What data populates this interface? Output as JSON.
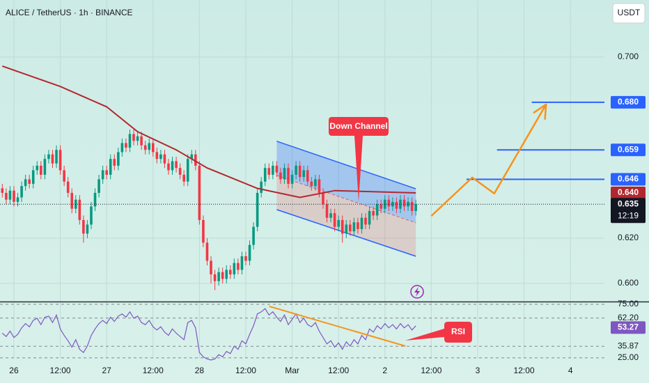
{
  "chart_data": {
    "type": "candlestick",
    "title": "ALICE / TetherUS · 1h · BINANCE",
    "currency": "USDT",
    "up_color": "#089981",
    "down_color": "#f23645",
    "x": [
      -3,
      -2,
      -1,
      0,
      1,
      2,
      3,
      4,
      5,
      6,
      7,
      8,
      9,
      10,
      11,
      12,
      13,
      14,
      15,
      16,
      17,
      18,
      19,
      20,
      21,
      22,
      23,
      24,
      25,
      26,
      27,
      28,
      29,
      30,
      31,
      32,
      33,
      34,
      35,
      36,
      37,
      38,
      39,
      40,
      41,
      42,
      43,
      44,
      45,
      46,
      47,
      48,
      49,
      50,
      51,
      52,
      53,
      54,
      55,
      56,
      57,
      58,
      59,
      60,
      61,
      62,
      63,
      64,
      65,
      66,
      67,
      68,
      69,
      70,
      71,
      72,
      73,
      74,
      75,
      76,
      77,
      78,
      79,
      80,
      81,
      82,
      83,
      84,
      85,
      86,
      87,
      88,
      89,
      90,
      91,
      92,
      93,
      94,
      95,
      96,
      97,
      98,
      99,
      100,
      101,
      102,
      103,
      104
    ],
    "open": [
      0.642,
      0.64,
      0.637,
      0.641,
      0.636,
      0.638,
      0.643,
      0.646,
      0.644,
      0.65,
      0.652,
      0.648,
      0.655,
      0.657,
      0.653,
      0.659,
      0.65,
      0.645,
      0.64,
      0.633,
      0.637,
      0.628,
      0.622,
      0.626,
      0.634,
      0.64,
      0.646,
      0.65,
      0.648,
      0.655,
      0.652,
      0.658,
      0.662,
      0.66,
      0.666,
      0.663,
      0.665,
      0.661,
      0.659,
      0.662,
      0.658,
      0.655,
      0.657,
      0.653,
      0.65,
      0.654,
      0.651,
      0.648,
      0.645,
      0.655,
      0.657,
      0.652,
      0.628,
      0.618,
      0.61,
      0.604,
      0.601,
      0.605,
      0.602,
      0.606,
      0.604,
      0.609,
      0.606,
      0.612,
      0.61,
      0.617,
      0.625,
      0.64,
      0.645,
      0.651,
      0.648,
      0.652,
      0.649,
      0.646,
      0.651,
      0.644,
      0.648,
      0.652,
      0.647,
      0.65,
      0.645,
      0.643,
      0.646,
      0.64,
      0.635,
      0.629,
      0.631,
      0.625,
      0.628,
      0.622,
      0.626,
      0.623,
      0.627,
      0.624,
      0.629,
      0.626,
      0.632,
      0.63,
      0.635,
      0.633,
      0.637,
      0.634,
      0.636,
      0.633,
      0.637,
      0.634,
      0.636,
      0.632
    ],
    "high": [
      0.644,
      0.642,
      0.643,
      0.643,
      0.64,
      0.645,
      0.648,
      0.648,
      0.652,
      0.654,
      0.654,
      0.657,
      0.659,
      0.659,
      0.661,
      0.661,
      0.652,
      0.647,
      0.642,
      0.639,
      0.639,
      0.63,
      0.628,
      0.636,
      0.642,
      0.648,
      0.652,
      0.652,
      0.657,
      0.657,
      0.66,
      0.664,
      0.664,
      0.668,
      0.668,
      0.667,
      0.667,
      0.663,
      0.664,
      0.664,
      0.66,
      0.659,
      0.659,
      0.655,
      0.656,
      0.656,
      0.653,
      0.65,
      0.657,
      0.659,
      0.659,
      0.654,
      0.63,
      0.62,
      0.612,
      0.606,
      0.607,
      0.607,
      0.608,
      0.608,
      0.611,
      0.611,
      0.614,
      0.614,
      0.619,
      0.627,
      0.642,
      0.647,
      0.653,
      0.653,
      0.654,
      0.654,
      0.651,
      0.653,
      0.653,
      0.65,
      0.654,
      0.654,
      0.652,
      0.652,
      0.647,
      0.648,
      0.648,
      0.642,
      0.637,
      0.633,
      0.633,
      0.63,
      0.63,
      0.628,
      0.628,
      0.629,
      0.629,
      0.631,
      0.631,
      0.634,
      0.634,
      0.637,
      0.637,
      0.639,
      0.639,
      0.638,
      0.638,
      0.639,
      0.639,
      0.638,
      0.638,
      0.637
    ],
    "low": [
      0.638,
      0.635,
      0.635,
      0.634,
      0.634,
      0.636,
      0.641,
      0.642,
      0.642,
      0.648,
      0.646,
      0.646,
      0.653,
      0.651,
      0.651,
      0.648,
      0.643,
      0.638,
      0.631,
      0.631,
      0.626,
      0.618,
      0.62,
      0.624,
      0.632,
      0.638,
      0.644,
      0.646,
      0.646,
      0.65,
      0.65,
      0.656,
      0.658,
      0.658,
      0.661,
      0.661,
      0.659,
      0.657,
      0.657,
      0.656,
      0.653,
      0.653,
      0.651,
      0.648,
      0.648,
      0.649,
      0.646,
      0.643,
      0.643,
      0.653,
      0.65,
      0.626,
      0.616,
      0.608,
      0.6,
      0.597,
      0.599,
      0.6,
      0.6,
      0.602,
      0.602,
      0.604,
      0.604,
      0.608,
      0.608,
      0.615,
      0.623,
      0.638,
      0.643,
      0.646,
      0.646,
      0.647,
      0.644,
      0.644,
      0.642,
      0.642,
      0.646,
      0.645,
      0.645,
      0.643,
      0.641,
      0.641,
      0.638,
      0.633,
      0.627,
      0.627,
      0.623,
      0.623,
      0.618,
      0.62,
      0.621,
      0.621,
      0.622,
      0.622,
      0.624,
      0.624,
      0.628,
      0.628,
      0.631,
      0.631,
      0.632,
      0.632,
      0.631,
      0.631,
      0.632,
      0.632,
      0.63,
      0.63
    ],
    "close": [
      0.64,
      0.637,
      0.641,
      0.636,
      0.638,
      0.643,
      0.646,
      0.644,
      0.65,
      0.652,
      0.648,
      0.655,
      0.657,
      0.653,
      0.659,
      0.65,
      0.645,
      0.64,
      0.633,
      0.637,
      0.628,
      0.622,
      0.626,
      0.634,
      0.64,
      0.646,
      0.65,
      0.648,
      0.655,
      0.652,
      0.658,
      0.662,
      0.66,
      0.666,
      0.663,
      0.665,
      0.661,
      0.659,
      0.662,
      0.658,
      0.655,
      0.657,
      0.653,
      0.65,
      0.654,
      0.651,
      0.648,
      0.645,
      0.655,
      0.657,
      0.652,
      0.628,
      0.618,
      0.61,
      0.604,
      0.601,
      0.605,
      0.602,
      0.606,
      0.604,
      0.609,
      0.606,
      0.612,
      0.61,
      0.617,
      0.625,
      0.64,
      0.645,
      0.651,
      0.648,
      0.652,
      0.649,
      0.646,
      0.651,
      0.644,
      0.648,
      0.652,
      0.647,
      0.65,
      0.645,
      0.643,
      0.646,
      0.64,
      0.635,
      0.629,
      0.631,
      0.625,
      0.628,
      0.622,
      0.626,
      0.623,
      0.627,
      0.624,
      0.629,
      0.626,
      0.632,
      0.63,
      0.635,
      0.633,
      0.637,
      0.634,
      0.636,
      0.633,
      0.637,
      0.634,
      0.636,
      0.632,
      0.635
    ],
    "xlim": [
      -3.6,
      152.8
    ],
    "xticks": [
      {
        "value": 0,
        "label": "26"
      },
      {
        "value": 12,
        "label": "12:00"
      },
      {
        "value": 24,
        "label": "27"
      },
      {
        "value": 36,
        "label": "12:00"
      },
      {
        "value": 48,
        "label": "28"
      },
      {
        "value": 60,
        "label": "12:00"
      },
      {
        "value": 72,
        "label": "Mar"
      },
      {
        "value": 84,
        "label": "12:00"
      },
      {
        "value": 96,
        "label": "2"
      },
      {
        "value": 108,
        "label": "12:00"
      },
      {
        "value": 120,
        "label": "3"
      },
      {
        "value": 132,
        "label": "12:00"
      },
      {
        "value": 144,
        "label": "4"
      }
    ],
    "ylim": [
      0.592,
      0.7252
    ],
    "yticks": [
      {
        "value": 0.7,
        "label": "0.700"
      },
      {
        "value": 0.62,
        "label": "0.620"
      },
      {
        "value": 0.6,
        "label": "0.600"
      }
    ],
    "grid": true,
    "moving_average": {
      "color": "#b2282e",
      "x": [
        -3,
        12,
        24,
        32,
        42,
        50,
        63,
        74,
        83,
        104
      ],
      "values": [
        0.696,
        0.687,
        0.678,
        0.667,
        0.659,
        0.651,
        0.642,
        0.638,
        0.641,
        0.64
      ],
      "current": {
        "value": 0.64,
        "label": "0.640"
      }
    },
    "last_price": {
      "value": 0.635,
      "label": "0.635",
      "countdown": "12:19"
    },
    "levels": [
      {
        "value": 0.646,
        "label": "0.646",
        "x_start": 117.1
      },
      {
        "value": 0.659,
        "label": "0.659",
        "x_start": 125
      },
      {
        "value": 0.68,
        "label": "0.680",
        "x_start": 134
      }
    ],
    "level_color": "#2962ff",
    "channel": {
      "label": "Down Channel",
      "x": [
        68,
        104
      ],
      "upper": [
        0.6628,
        0.6418
      ],
      "middle": [
        0.6477,
        0.6268
      ],
      "lower": [
        0.6326,
        0.612
      ]
    },
    "projection": {
      "color": "#f7931a",
      "x": [
        108,
        118.6,
        124.3,
        137.7
      ],
      "values": [
        0.6298,
        0.6468,
        0.6397,
        0.6791
      ]
    },
    "rsi": {
      "label": "RSI",
      "color": "#7e57c2",
      "ylim": [
        24.3,
        77.6
      ],
      "yticks": [
        {
          "value": 75,
          "label": "75.00"
        },
        {
          "value": 62.2,
          "label": "62.20"
        },
        {
          "value": 35.87,
          "label": "35.87"
        },
        {
          "value": 25,
          "label": "25.00"
        }
      ],
      "current": {
        "value": 53.27,
        "label": "53.27"
      },
      "values": [
        48,
        45,
        50,
        44,
        47,
        53,
        57,
        54,
        60,
        62,
        56,
        63,
        64,
        58,
        65,
        52,
        46,
        41,
        35,
        42,
        33,
        30,
        36,
        46,
        52,
        57,
        60,
        57,
        63,
        59,
        64,
        66,
        63,
        68,
        62,
        64,
        58,
        56,
        60,
        54,
        51,
        54,
        49,
        46,
        52,
        48,
        45,
        42,
        58,
        60,
        53,
        30,
        26,
        24,
        23,
        24,
        28,
        26,
        31,
        29,
        36,
        33,
        41,
        38,
        47,
        55,
        66,
        68,
        71,
        65,
        68,
        63,
        59,
        65,
        56,
        61,
        66,
        58,
        62,
        56,
        54,
        58,
        50,
        44,
        38,
        41,
        35,
        39,
        33,
        40,
        36,
        42,
        38,
        46,
        42,
        52,
        49,
        55,
        52,
        57,
        53,
        56,
        52,
        57,
        53,
        56,
        51,
        55
      ],
      "trendline": {
        "x": [
          66.1,
          101.3
        ],
        "values": [
          73.1,
          36.0
        ]
      }
    }
  }
}
